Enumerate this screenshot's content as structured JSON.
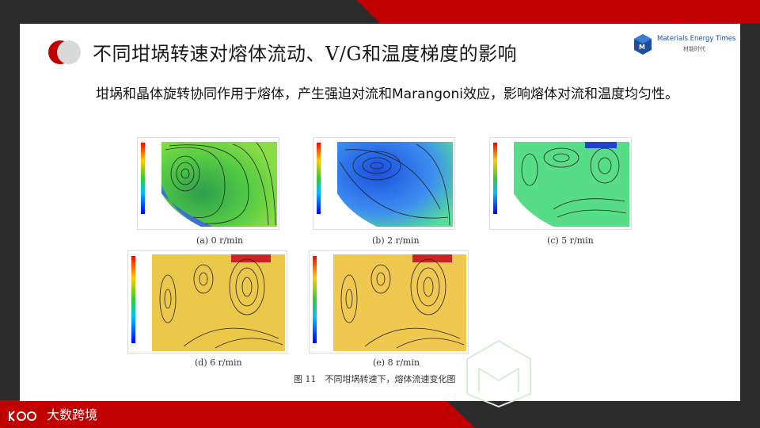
{
  "slide": {
    "title": "不同坩埚转速对熔体流动、V/G和温度梯度的影响",
    "body": "坩埚和晶体旋转协同作用于熔体，产生强迫对流和Marangoni效应，影响熔体对流和温度均匀性。",
    "logo": {
      "name": "Materials Energy Times",
      "sub": "材能时代",
      "icon": "cube-logo-icon"
    },
    "brand": "大数跨境"
  },
  "figure": {
    "title": "图 11　不同坩埚转速下，熔体流速变化图",
    "panels": [
      {
        "caption": "(a) 0 r/min",
        "palette": "green"
      },
      {
        "caption": "(b) 2 r/min",
        "palette": "blue"
      },
      {
        "caption": "(c) 5 r/min",
        "palette": "mint"
      },
      {
        "caption": "(d) 6 r/min",
        "palette": "yellow"
      },
      {
        "caption": "(e) 8 r/min",
        "palette": "yellow"
      }
    ]
  },
  "colors": {
    "accent_red": "#c00000",
    "dark": "#2b2b2b",
    "logo_blue": "#1e4f9c"
  }
}
